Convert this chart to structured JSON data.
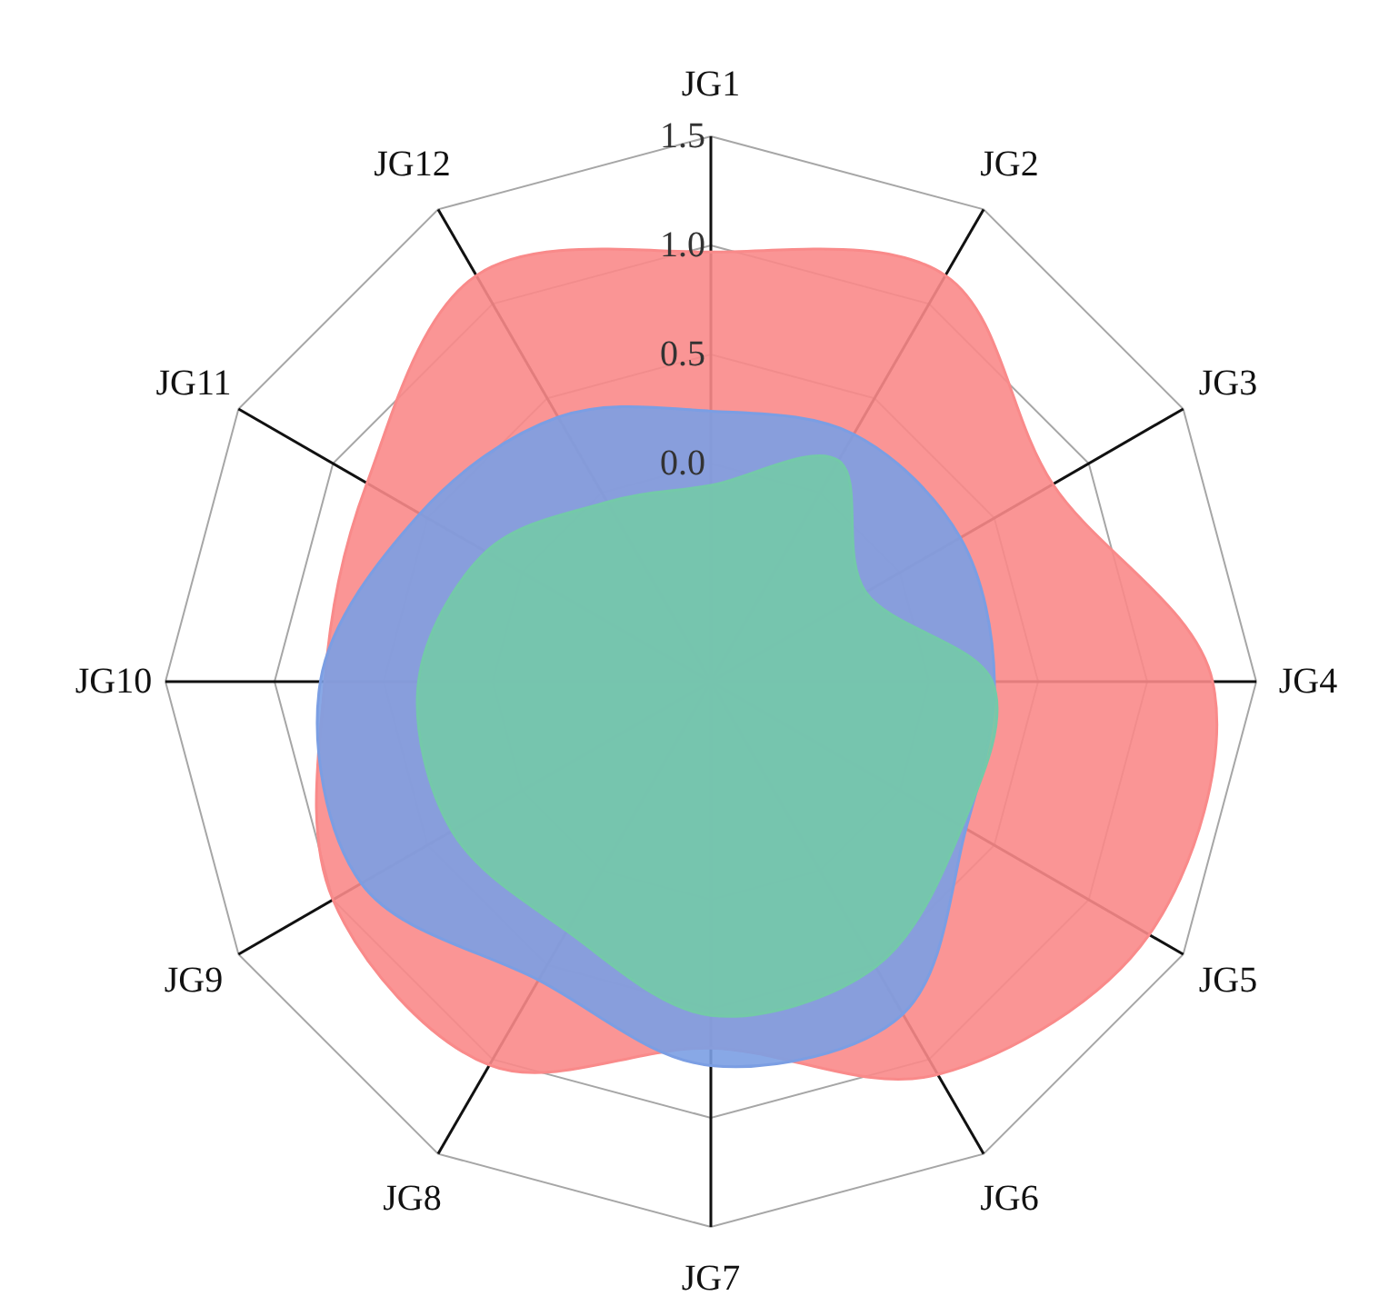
{
  "chart_data": {
    "type": "radar",
    "categories": [
      "JG1",
      "JG2",
      "JG3",
      "JG4",
      "JG5",
      "JG6",
      "JG7",
      "JG8",
      "JG9",
      "JG10",
      "JG11",
      "JG12"
    ],
    "ylim": [
      -1,
      1.5
    ],
    "yticks": [
      {
        "value": 0,
        "label": "0.0"
      },
      {
        "value": 0.5,
        "label": "0.5"
      },
      {
        "value": 1,
        "label": "1.0"
      },
      {
        "value": 1.5,
        "label": "1.5"
      }
    ],
    "grid": true,
    "series": [
      {
        "color": "#f98a8a",
        "values": [
          0.97,
          1.15,
          0.81,
          1.3,
          1.32,
          1.08,
          0.68,
          1.03,
          1.0,
          0.77,
          0.82,
          1.15
        ]
      },
      {
        "color": "#7b9ee3",
        "values": [
          0.24,
          0.31,
          0.32,
          0.3,
          0.35,
          0.76,
          0.76,
          0.58,
          0.85,
          0.79,
          0.54,
          0.4
        ]
      },
      {
        "color": "#74c9a9",
        "values": [
          -0.1,
          0.17,
          -0.18,
          0.29,
          0.33,
          0.51,
          0.53,
          0.32,
          0.37,
          0.34,
          0.19,
          -0.05
        ]
      }
    ]
  }
}
